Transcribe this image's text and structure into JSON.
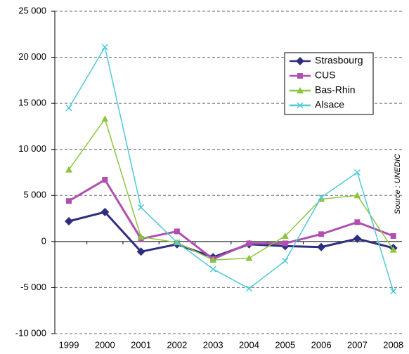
{
  "chart_data": {
    "type": "line",
    "categories": [
      "1999",
      "2000",
      "2001",
      "2002",
      "2003",
      "2004",
      "2005",
      "2006",
      "2007",
      "2008"
    ],
    "series": [
      {
        "name": "Strasbourg",
        "color": "#2e2e7e",
        "marker": "diamond",
        "values": [
          2200,
          3200,
          -1100,
          -300,
          -1700,
          -300,
          -500,
          -600,
          300,
          -700
        ]
      },
      {
        "name": "CUS",
        "color": "#b04fb0",
        "marker": "square",
        "values": [
          4400,
          6700,
          300,
          1100,
          -1900,
          -200,
          -200,
          800,
          2100,
          600
        ]
      },
      {
        "name": "Bas-Rhin",
        "color": "#8cc63f",
        "marker": "triangle",
        "values": [
          7800,
          13300,
          500,
          -100,
          -2000,
          -1800,
          600,
          4600,
          5000,
          -900
        ]
      },
      {
        "name": "Alsace",
        "color": "#4fc9d9",
        "marker": "x",
        "values": [
          14500,
          21100,
          3700,
          -100,
          -3000,
          -5100,
          -2100,
          4800,
          7500,
          -5400
        ]
      }
    ],
    "ylim": [
      -10000,
      25000
    ],
    "yticks": [
      {
        "value": -10000,
        "label": "-10 000"
      },
      {
        "value": -5000,
        "label": "-5 000"
      },
      0,
      {
        "value": 5000,
        "label": "5 000"
      },
      {
        "value": 10000,
        "label": "10 000"
      },
      {
        "value": 15000,
        "label": "15 000"
      },
      {
        "value": 20000,
        "label": "20 000"
      },
      {
        "value": 25000,
        "label": "25 000"
      }
    ],
    "grid": true,
    "legend": "upper right",
    "annotation": "Source : UNEDIC"
  }
}
